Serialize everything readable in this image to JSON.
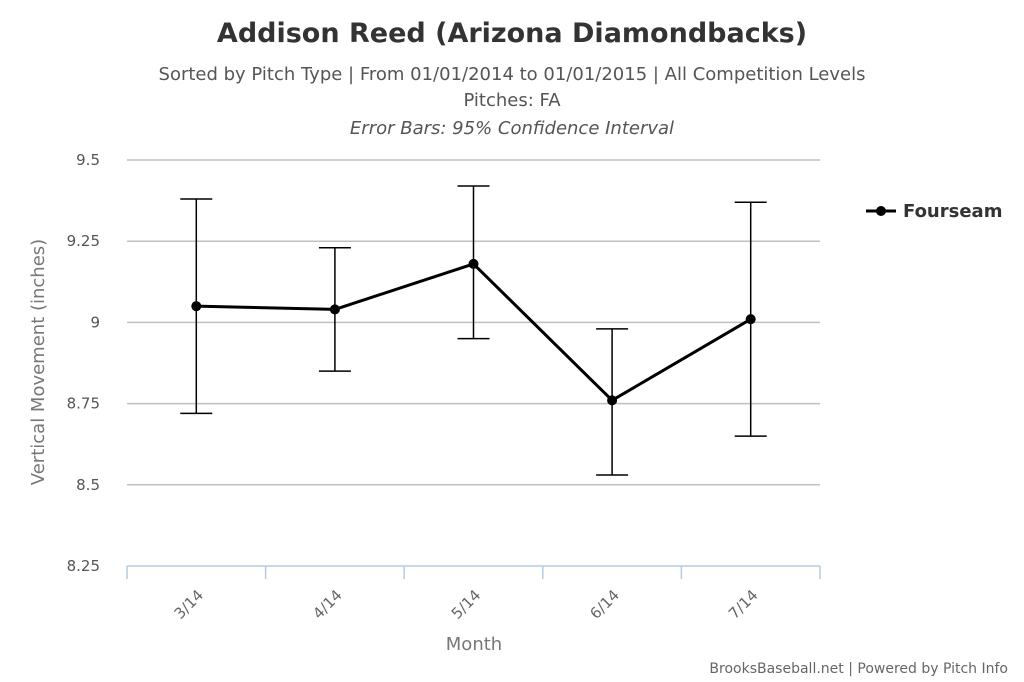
{
  "chart_data": {
    "type": "line",
    "title": "Addison Reed (Arizona Diamondbacks)",
    "subtitle_lines": [
      "Sorted by Pitch Type | From 01/01/2014 to 01/01/2015 | All Competition Levels",
      "Pitches: FA"
    ],
    "subtitle_italic": "Error Bars: 95% Confidence Interval",
    "xlabel": "Month",
    "ylabel": "Vertical Movement (inches)",
    "categories": [
      "3/14",
      "4/14",
      "5/14",
      "6/14",
      "7/14"
    ],
    "ylim": [
      8.25,
      9.5
    ],
    "yticks": [
      8.25,
      8.5,
      8.75,
      9,
      9.25,
      9.5
    ],
    "ytick_labels": [
      "8.25",
      "8.5",
      "8.75",
      "9",
      "9.25",
      "9.5"
    ],
    "grid": true,
    "legend_position": "right",
    "series": [
      {
        "name": "Fourseam",
        "color": "#000000",
        "values": [
          9.05,
          9.04,
          9.18,
          8.76,
          9.01
        ],
        "error_low": [
          8.72,
          8.85,
          8.95,
          8.53,
          8.65
        ],
        "error_high": [
          9.38,
          9.23,
          9.42,
          8.98,
          9.37
        ]
      }
    ]
  },
  "credit": "BrooksBaseball.net | Powered by Pitch Info"
}
